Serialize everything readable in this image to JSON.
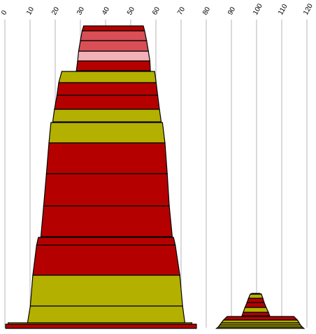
{
  "chart_data": {
    "type": "area",
    "xlim": [
      0,
      120
    ],
    "grid": true,
    "x_ticks": [
      "0",
      "10",
      "20",
      "30",
      "40",
      "50",
      "60",
      "70",
      "80",
      "90",
      "100",
      "110",
      "120"
    ],
    "colors": {
      "red": "#b50000",
      "olive": "#b4b000",
      "rose": "#d94f55",
      "pink": "#f2b0b8",
      "outline": "#000000",
      "grid": "#b4b4b4"
    },
    "stacks": [
      {
        "bands": [
          {
            "left": [
              0.3,
              0.3
            ],
            "right": [
              76.1,
              76.1
            ],
            "color": "red"
          },
          {
            "left": [
              1.3,
              1.3
            ],
            "right": [
              74.3,
              74.3
            ],
            "color": "olive"
          },
          {
            "left": [
              9.0,
              10.1
            ],
            "right": [
              71.5,
              70.6
            ],
            "color": "olive"
          },
          {
            "left": [
              10.1,
              11.1
            ],
            "right": [
              70.6,
              69.5
            ],
            "color": "olive"
          },
          {
            "left": [
              11.1,
              12.6
            ],
            "right": [
              69.5,
              67.7
            ],
            "color": "red"
          },
          {
            "left": [
              12.6,
              13.3
            ],
            "right": [
              67.7,
              67.0
            ],
            "color": "red"
          },
          {
            "left": [
              14.3,
              15.4
            ],
            "right": [
              66.5,
              65.3
            ],
            "color": "red"
          },
          {
            "left": [
              15.4,
              16.5
            ],
            "right": [
              65.3,
              64.5
            ],
            "color": "red"
          },
          {
            "left": [
              16.5,
              17.5
            ],
            "right": [
              64.5,
              63.6
            ],
            "color": "red"
          },
          {
            "left": [
              17.5,
              18.3
            ],
            "right": [
              63.6,
              62.6
            ],
            "color": "olive"
          },
          {
            "left": [
              19.0,
              19.7
            ],
            "right": [
              62.1,
              61.4
            ],
            "color": "olive"
          },
          {
            "left": [
              19.7,
              20.7
            ],
            "right": [
              61.4,
              60.7
            ],
            "color": "red"
          },
          {
            "left": [
              20.7,
              21.4
            ],
            "right": [
              60.7,
              60.1
            ],
            "color": "red"
          },
          {
            "left": [
              21.4,
              22.6
            ],
            "right": [
              60.1,
              59.5
            ],
            "color": "olive"
          },
          {
            "left": [
              28.4,
              28.9
            ],
            "right": [
              57.8,
              57.6
            ],
            "color": "red"
          },
          {
            "left": [
              28.9,
              29.3
            ],
            "right": [
              57.6,
              57.0
            ],
            "color": "pink"
          },
          {
            "left": [
              29.3,
              30.0
            ],
            "right": [
              57.0,
              56.3
            ],
            "color": "rose"
          },
          {
            "left": [
              30.0,
              30.7
            ],
            "right": [
              56.3,
              55.5
            ],
            "color": "rose"
          },
          {
            "left": [
              30.7,
              31.3
            ],
            "right": [
              55.5,
              55.0
            ],
            "color": "red"
          }
        ]
      },
      {
        "bands": [
          {
            "left": [
              84.1,
              84.8
            ],
            "right": [
              118.8,
              118.1
            ],
            "color": "olive"
          },
          {
            "left": [
              84.8,
              85.4
            ],
            "right": [
              118.1,
              117.4
            ],
            "color": "olive"
          },
          {
            "left": [
              85.4,
              86.0
            ],
            "right": [
              117.4,
              116.9
            ],
            "color": "olive"
          },
          {
            "left": [
              86.0,
              86.9
            ],
            "right": [
              116.9,
              116.2
            ],
            "color": "olive"
          },
          {
            "left": [
              86.9,
              88.3
            ],
            "right": [
              116.2,
              114.8
            ],
            "color": "red"
          },
          {
            "left": [
              94.2,
              94.7
            ],
            "right": [
              105.2,
              104.7
            ],
            "color": "red"
          },
          {
            "left": [
              94.7,
              95.4
            ],
            "right": [
              104.7,
              103.8
            ],
            "color": "olive"
          },
          {
            "left": [
              95.4,
              96.2
            ],
            "right": [
              103.8,
              103.0
            ],
            "color": "red"
          },
          {
            "left": [
              96.2,
              96.8
            ],
            "right": [
              103.0,
              102.5
            ],
            "color": "red"
          },
          {
            "left": [
              96.8,
              97.5
            ],
            "right": [
              102.5,
              101.9
            ],
            "color": "olive"
          },
          {
            "left": [
              97.5,
              98.2
            ],
            "right": [
              101.9,
              101.2
            ],
            "color": "red"
          }
        ]
      }
    ]
  }
}
